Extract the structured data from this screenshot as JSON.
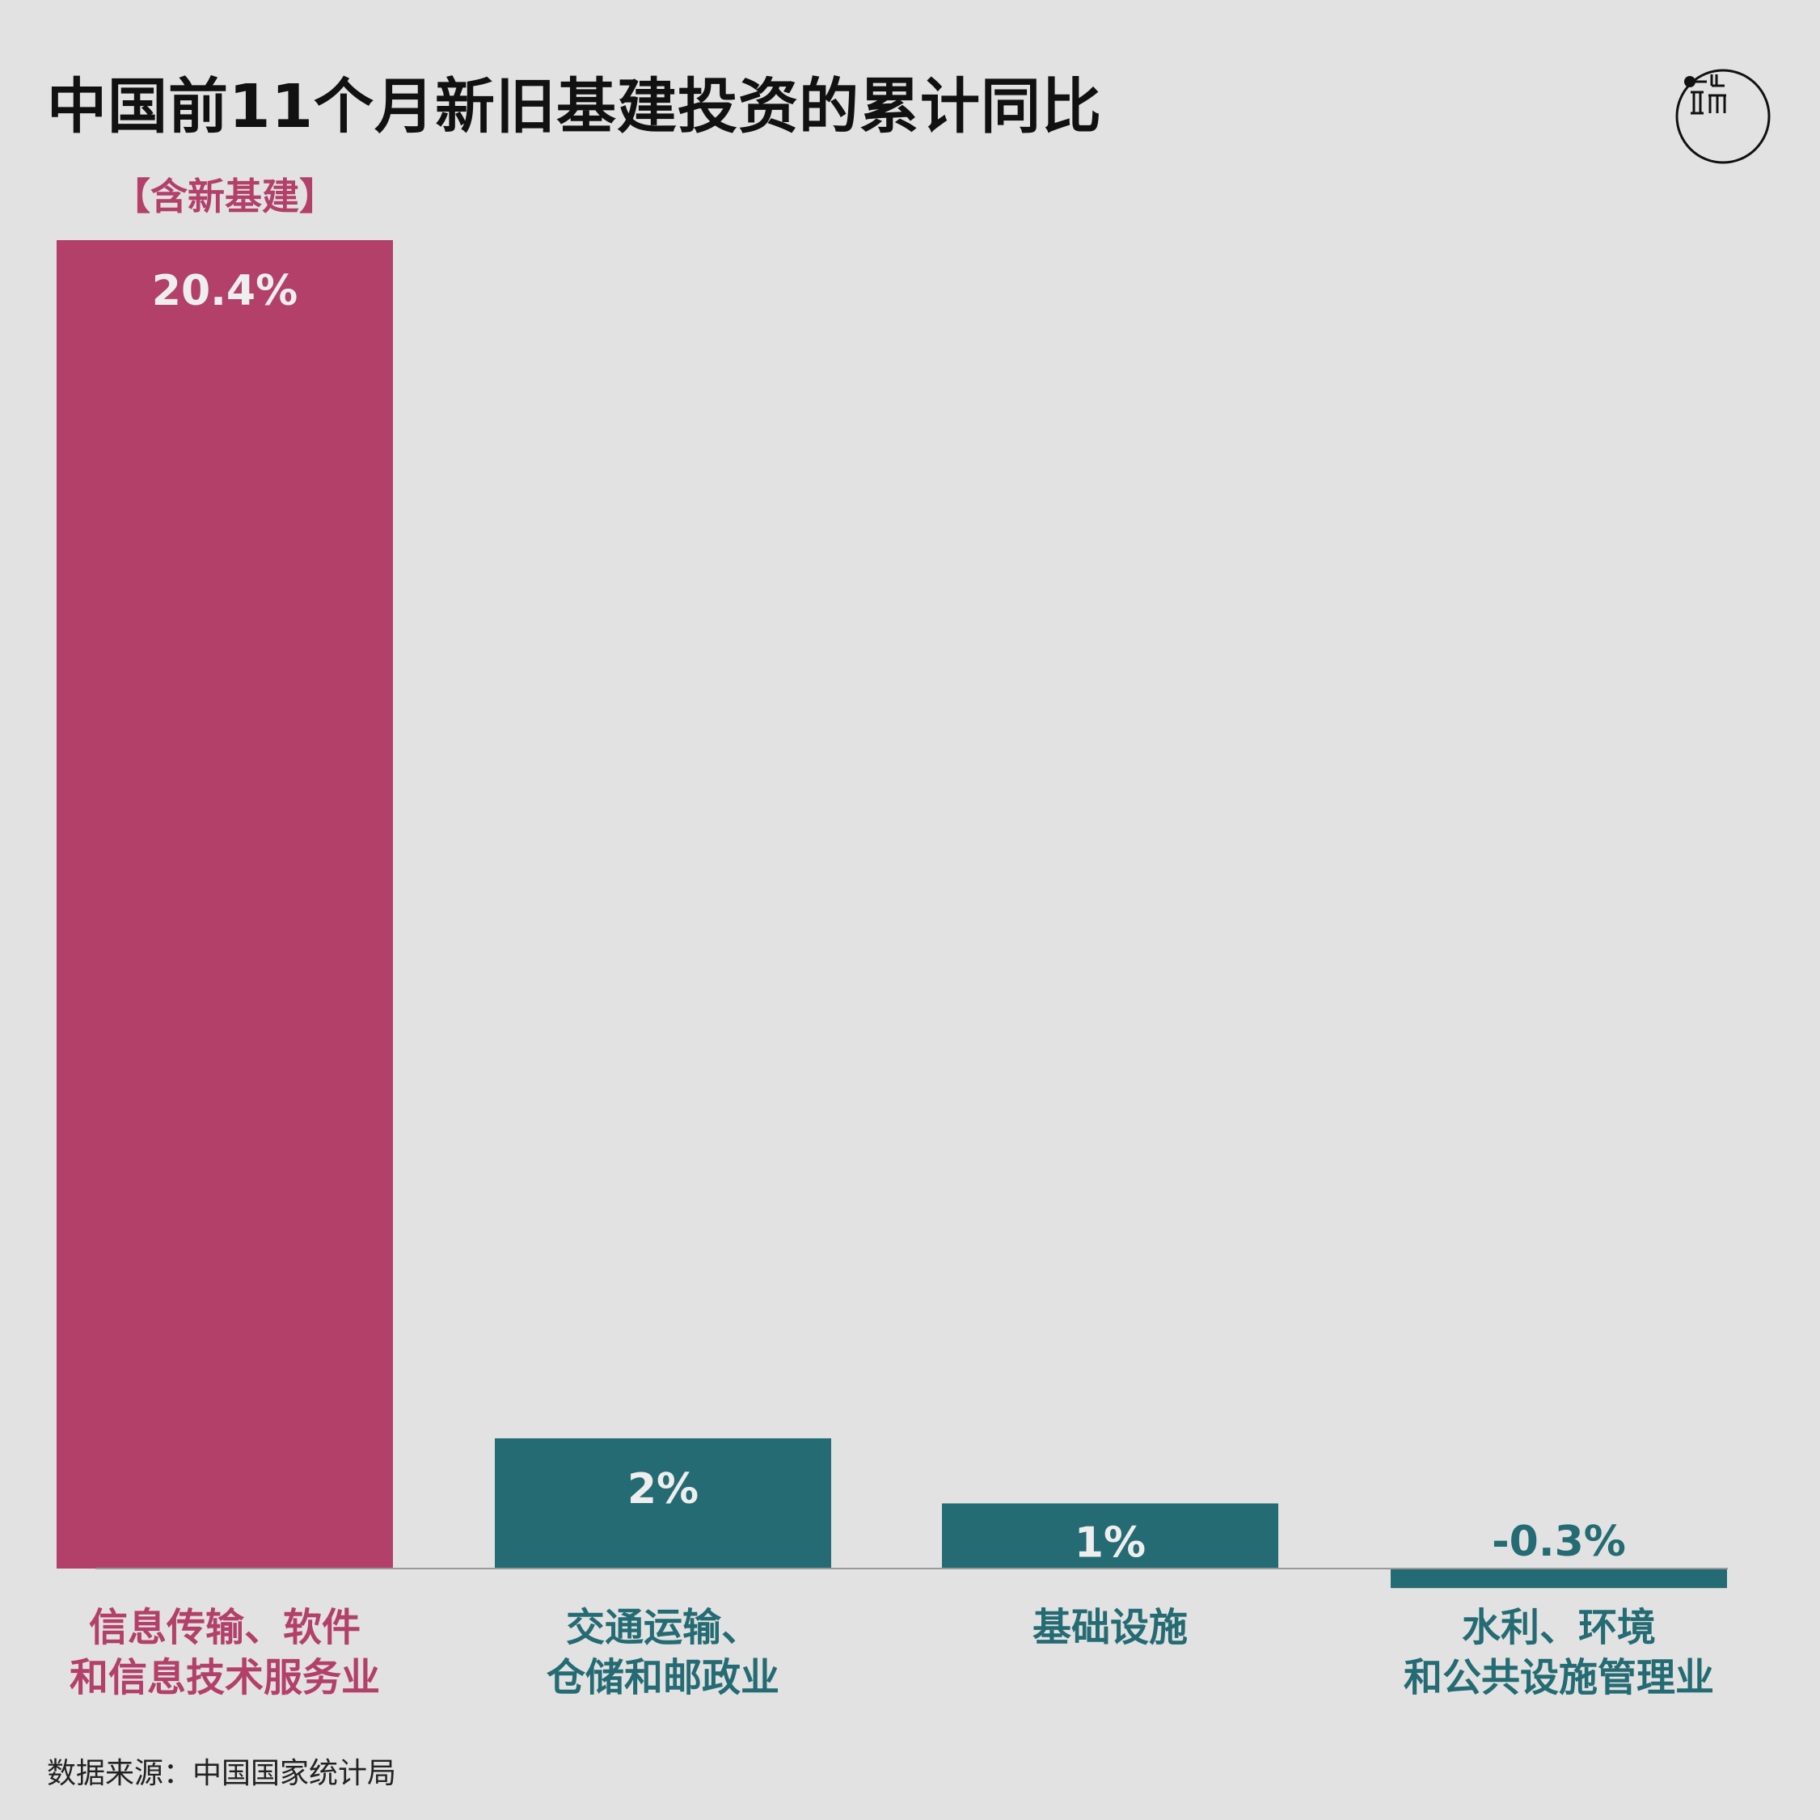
{
  "title": "中国前11个月新旧基建投资的累计同比",
  "source": "数据来源：中国国家统计局",
  "colors": {
    "background": "#e2e2e2",
    "highlight": "#b24068",
    "default": "#246b73",
    "axis": "#9a9a9a",
    "title": "#111111"
  },
  "logo": {
    "icon": "initium-media-logo-icon"
  },
  "chart_data": {
    "type": "bar",
    "title": "中国前11个月新旧基建投资的累计同比",
    "xlabel": "",
    "ylabel": "",
    "ylim": [
      -0.3,
      20.4
    ],
    "grid": false,
    "categories": [
      [
        "信息传输、软件",
        "和信息技术服务业"
      ],
      [
        "交通运输、",
        "仓储和邮政业"
      ],
      [
        "基础设施"
      ],
      [
        "水利、环境",
        "和公共设施管理业"
      ]
    ],
    "values": [
      20.4,
      2,
      1,
      -0.3
    ],
    "value_labels": [
      "20.4%",
      "2%",
      "1%",
      "-0.3%"
    ],
    "highlight_index": 0,
    "annotations": [
      {
        "bar_index": 0,
        "text": "【含新基建】"
      }
    ]
  }
}
